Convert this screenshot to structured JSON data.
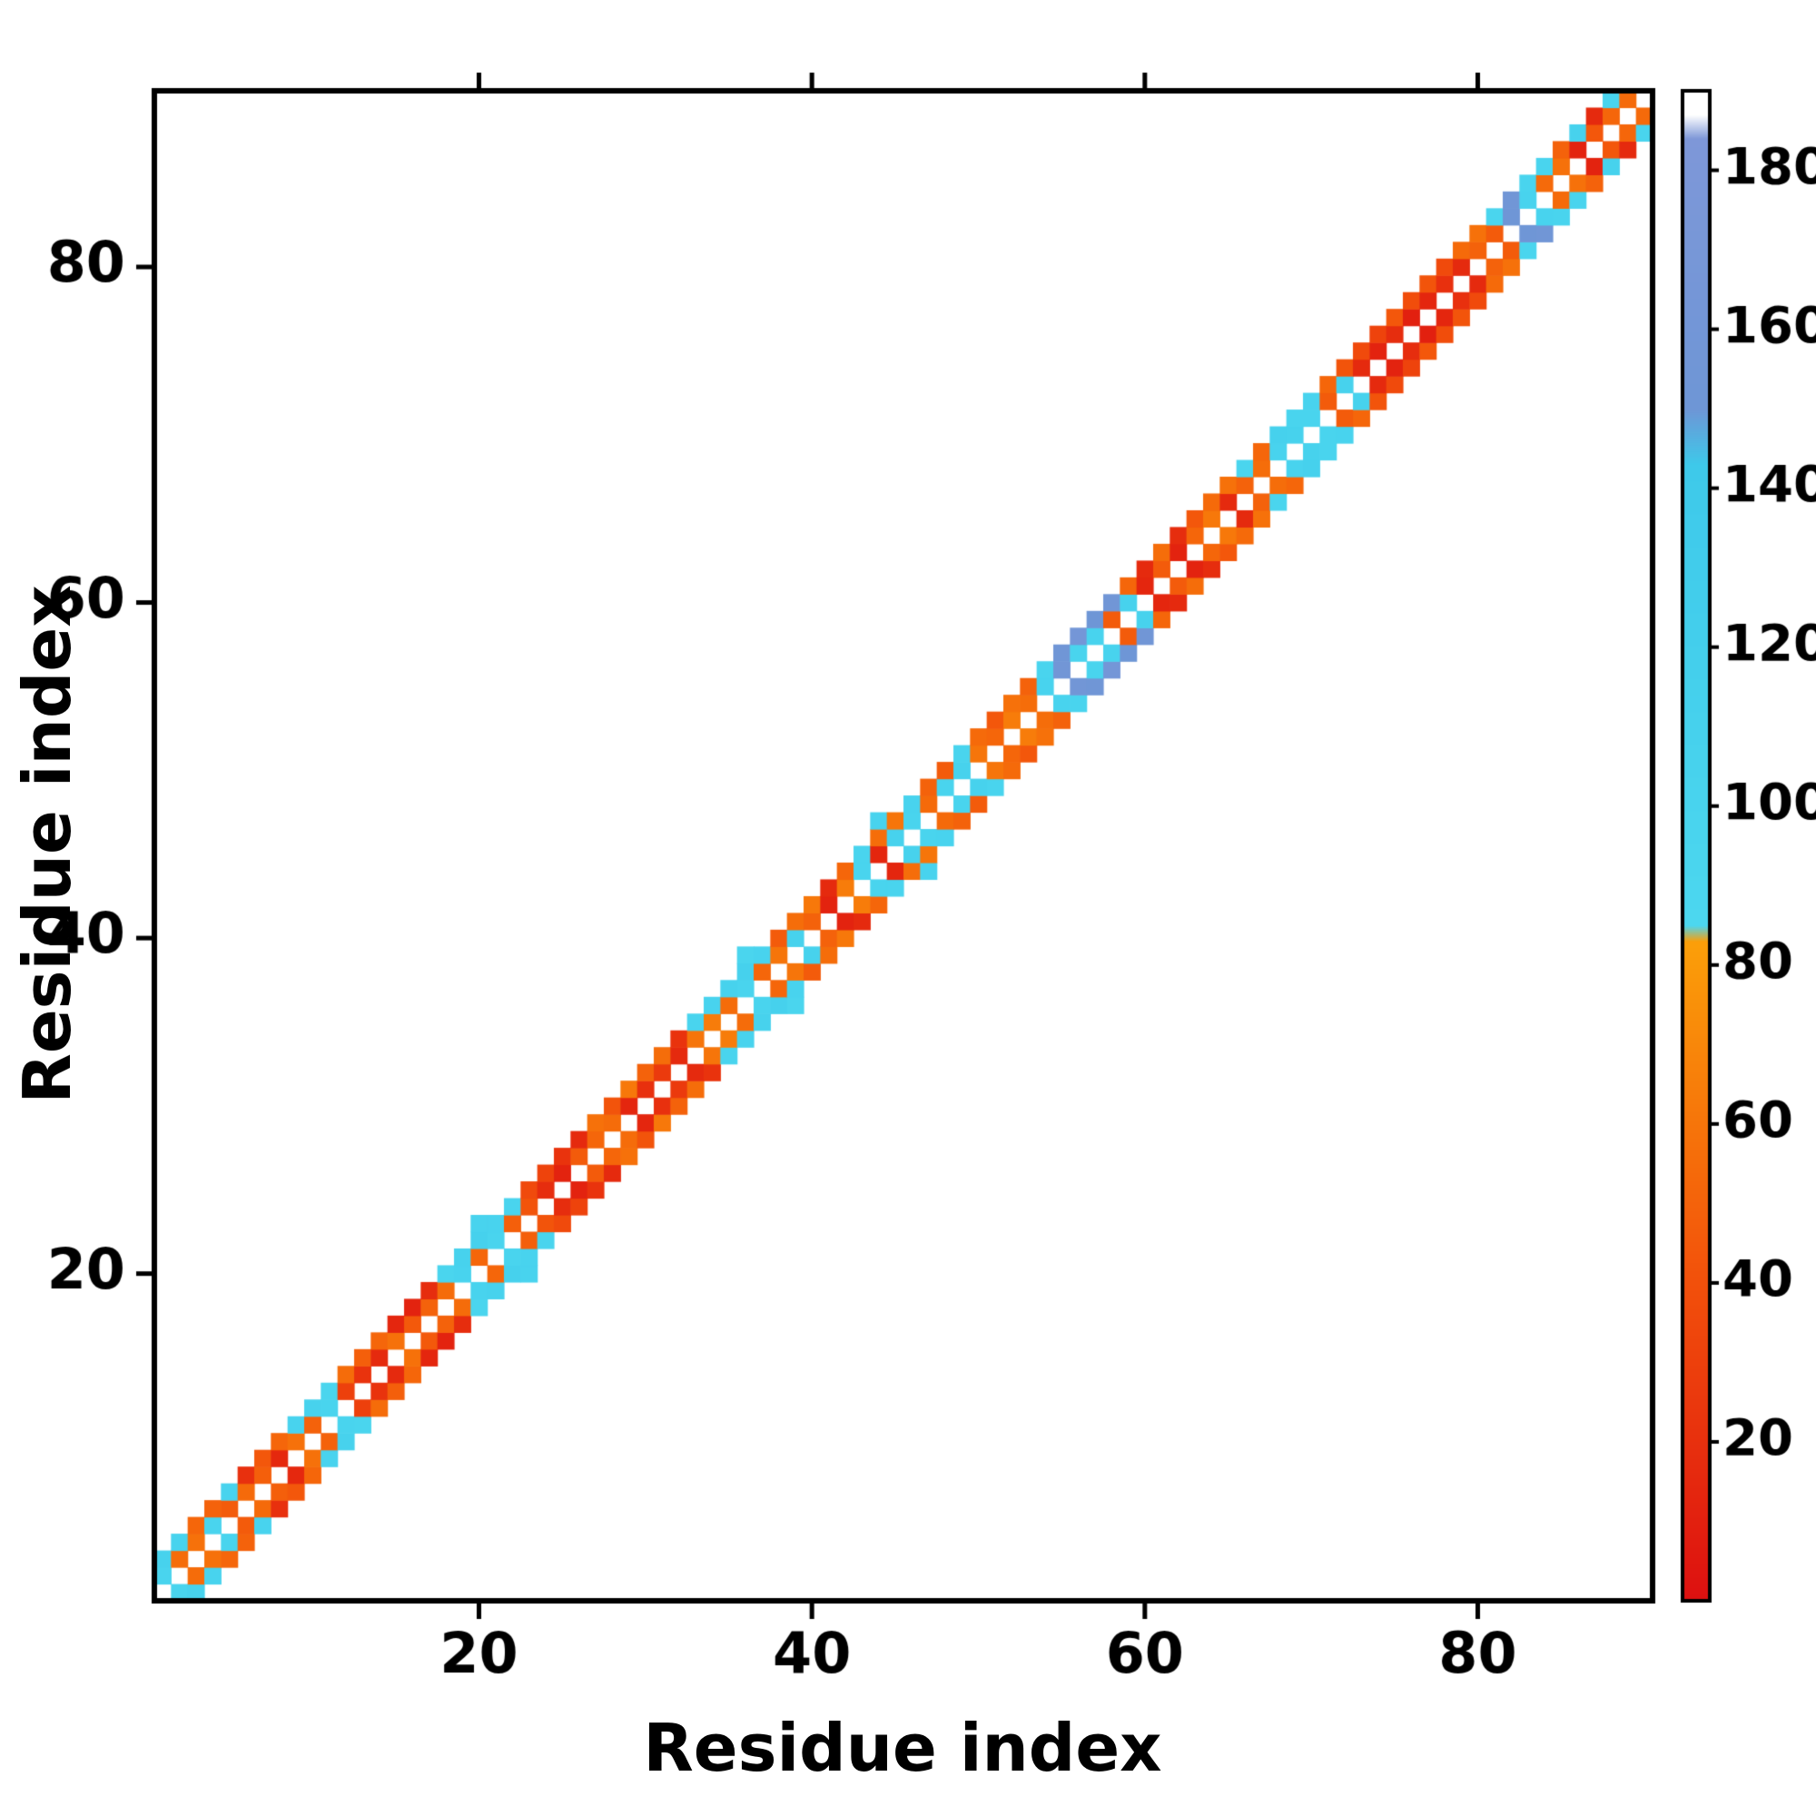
{
  "figure": {
    "background": "#ffffff"
  },
  "chart_data": {
    "type": "heatmap",
    "title": "",
    "xlabel": "Residue index",
    "ylabel": "Residue index",
    "x_range": [
      0.5,
      90.5
    ],
    "y_range": [
      0.5,
      90.5
    ],
    "n_residues": 90,
    "x_ticks": [
      20,
      40,
      60,
      80
    ],
    "y_ticks": [
      20,
      40,
      60,
      80
    ],
    "grid": false,
    "symmetric": true,
    "diagonal_blank": true,
    "axis_color": "#000000",
    "colorbar": {
      "range": [
        0,
        190
      ],
      "ticks": [
        20,
        40,
        60,
        80,
        100,
        120,
        140,
        160,
        180
      ],
      "stops": [
        [
          0,
          "#dd1010"
        ],
        [
          40,
          "#f2500b"
        ],
        [
          83,
          "#fb9f09"
        ],
        [
          85,
          "#4cd7ef"
        ],
        [
          143,
          "#3ec9ea"
        ],
        [
          150,
          "#6e96d6"
        ],
        [
          184,
          "#7e97d8"
        ],
        [
          187,
          "#ffffff"
        ],
        [
          190,
          "#ffffff"
        ]
      ]
    },
    "contacts": [
      [
        1,
        2,
        96
      ],
      [
        1,
        3,
        104
      ],
      [
        2,
        3,
        55
      ],
      [
        2,
        4,
        100
      ],
      [
        3,
        4,
        58
      ],
      [
        3,
        5,
        52
      ],
      [
        4,
        5,
        98
      ],
      [
        4,
        6,
        50
      ],
      [
        5,
        6,
        46
      ],
      [
        5,
        7,
        102
      ],
      [
        6,
        7,
        54
      ],
      [
        6,
        8,
        20
      ],
      [
        7,
        8,
        48
      ],
      [
        7,
        9,
        44
      ],
      [
        8,
        9,
        15
      ],
      [
        8,
        10,
        52
      ],
      [
        9,
        10,
        58
      ],
      [
        9,
        11,
        100
      ],
      [
        10,
        11,
        50
      ],
      [
        10,
        12,
        106
      ],
      [
        11,
        12,
        98
      ],
      [
        11,
        13,
        95
      ],
      [
        12,
        13,
        30
      ],
      [
        12,
        14,
        55
      ],
      [
        13,
        14,
        22
      ],
      [
        13,
        15,
        48
      ],
      [
        14,
        15,
        16
      ],
      [
        14,
        16,
        52
      ],
      [
        15,
        16,
        58
      ],
      [
        15,
        17,
        14
      ],
      [
        16,
        17,
        45
      ],
      [
        16,
        18,
        12
      ],
      [
        17,
        18,
        50
      ],
      [
        17,
        19,
        18
      ],
      [
        18,
        19,
        55
      ],
      [
        18,
        20,
        95
      ],
      [
        19,
        20,
        100
      ],
      [
        19,
        21,
        104
      ],
      [
        20,
        21,
        52
      ],
      [
        20,
        22,
        108
      ],
      [
        20,
        23,
        100
      ],
      [
        21,
        22,
        98
      ],
      [
        21,
        23,
        102
      ],
      [
        22,
        23,
        48
      ],
      [
        22,
        24,
        96
      ],
      [
        23,
        24,
        42
      ],
      [
        23,
        25,
        36
      ],
      [
        24,
        25,
        18
      ],
      [
        24,
        26,
        32
      ],
      [
        25,
        26,
        12
      ],
      [
        25,
        27,
        22
      ],
      [
        26,
        27,
        46
      ],
      [
        26,
        28,
        16
      ],
      [
        27,
        28,
        52
      ],
      [
        27,
        29,
        58
      ],
      [
        28,
        29,
        55
      ],
      [
        28,
        30,
        42
      ],
      [
        29,
        30,
        14
      ],
      [
        29,
        31,
        62
      ],
      [
        30,
        31,
        20
      ],
      [
        30,
        32,
        50
      ],
      [
        31,
        32,
        26
      ],
      [
        31,
        33,
        56
      ],
      [
        32,
        33,
        16
      ],
      [
        32,
        34,
        22
      ],
      [
        33,
        34,
        60
      ],
      [
        33,
        35,
        96
      ],
      [
        34,
        35,
        64
      ],
      [
        34,
        36,
        100
      ],
      [
        35,
        36,
        55
      ],
      [
        35,
        37,
        104
      ],
      [
        36,
        37,
        98
      ],
      [
        36,
        38,
        108
      ],
      [
        36,
        39,
        95
      ],
      [
        37,
        38,
        52
      ],
      [
        37,
        39,
        100
      ],
      [
        38,
        39,
        60
      ],
      [
        38,
        40,
        46
      ],
      [
        39,
        40,
        104
      ],
      [
        39,
        41,
        56
      ],
      [
        40,
        41,
        50
      ],
      [
        40,
        42,
        62
      ],
      [
        41,
        42,
        12
      ],
      [
        41,
        43,
        16
      ],
      [
        42,
        43,
        64
      ],
      [
        42,
        44,
        52
      ],
      [
        43,
        44,
        98
      ],
      [
        43,
        45,
        96
      ],
      [
        44,
        45,
        14
      ],
      [
        44,
        46,
        56
      ],
      [
        44,
        47,
        100
      ],
      [
        45,
        46,
        104
      ],
      [
        45,
        47,
        60
      ],
      [
        46,
        47,
        97
      ],
      [
        46,
        48,
        102
      ],
      [
        47,
        48,
        54
      ],
      [
        47,
        49,
        50
      ],
      [
        48,
        49,
        96
      ],
      [
        48,
        50,
        46
      ],
      [
        49,
        50,
        104
      ],
      [
        49,
        51,
        99
      ],
      [
        50,
        51,
        60
      ],
      [
        50,
        52,
        54
      ],
      [
        51,
        52,
        52
      ],
      [
        51,
        53,
        44
      ],
      [
        52,
        53,
        64
      ],
      [
        52,
        54,
        58
      ],
      [
        53,
        54,
        56
      ],
      [
        53,
        55,
        50
      ],
      [
        54,
        55,
        100
      ],
      [
        54,
        56,
        96
      ],
      [
        55,
        56,
        158
      ],
      [
        55,
        57,
        154
      ],
      [
        56,
        57,
        98
      ],
      [
        56,
        58,
        162
      ],
      [
        57,
        58,
        100
      ],
      [
        57,
        59,
        150
      ],
      [
        58,
        59,
        46
      ],
      [
        58,
        60,
        156
      ],
      [
        59,
        60,
        104
      ],
      [
        59,
        61,
        52
      ],
      [
        60,
        61,
        14
      ],
      [
        60,
        62,
        16
      ],
      [
        61,
        62,
        46
      ],
      [
        61,
        63,
        56
      ],
      [
        62,
        63,
        12
      ],
      [
        62,
        64,
        18
      ],
      [
        63,
        64,
        52
      ],
      [
        63,
        65,
        44
      ],
      [
        64,
        65,
        62
      ],
      [
        64,
        66,
        54
      ],
      [
        65,
        66,
        16
      ],
      [
        65,
        67,
        58
      ],
      [
        66,
        67,
        50
      ],
      [
        66,
        68,
        94
      ],
      [
        67,
        68,
        56
      ],
      [
        67,
        69,
        52
      ],
      [
        68,
        69,
        100
      ],
      [
        68,
        70,
        108
      ],
      [
        69,
        70,
        104
      ],
      [
        69,
        71,
        96
      ],
      [
        70,
        71,
        98
      ],
      [
        70,
        72,
        102
      ],
      [
        71,
        72,
        46
      ],
      [
        71,
        73,
        52
      ],
      [
        72,
        73,
        104
      ],
      [
        72,
        74,
        42
      ],
      [
        73,
        74,
        16
      ],
      [
        73,
        75,
        36
      ],
      [
        74,
        75,
        12
      ],
      [
        74,
        76,
        32
      ],
      [
        75,
        76,
        18
      ],
      [
        75,
        77,
        44
      ],
      [
        76,
        77,
        10
      ],
      [
        76,
        78,
        38
      ],
      [
        77,
        78,
        14
      ],
      [
        77,
        79,
        42
      ],
      [
        78,
        79,
        20
      ],
      [
        78,
        80,
        36
      ],
      [
        79,
        80,
        16
      ],
      [
        79,
        81,
        54
      ],
      [
        80,
        81,
        50
      ],
      [
        80,
        82,
        58
      ],
      [
        81,
        82,
        46
      ],
      [
        81,
        83,
        94
      ],
      [
        82,
        83,
        152
      ],
      [
        82,
        84,
        156
      ],
      [
        83,
        84,
        100
      ],
      [
        83,
        85,
        98
      ],
      [
        84,
        85,
        54
      ],
      [
        84,
        86,
        96
      ],
      [
        85,
        86,
        58
      ],
      [
        85,
        87,
        50
      ],
      [
        86,
        87,
        12
      ],
      [
        86,
        88,
        104
      ],
      [
        87,
        88,
        44
      ],
      [
        87,
        89,
        16
      ],
      [
        88,
        89,
        52
      ],
      [
        88,
        90,
        96
      ],
      [
        89,
        90,
        54
      ]
    ]
  }
}
